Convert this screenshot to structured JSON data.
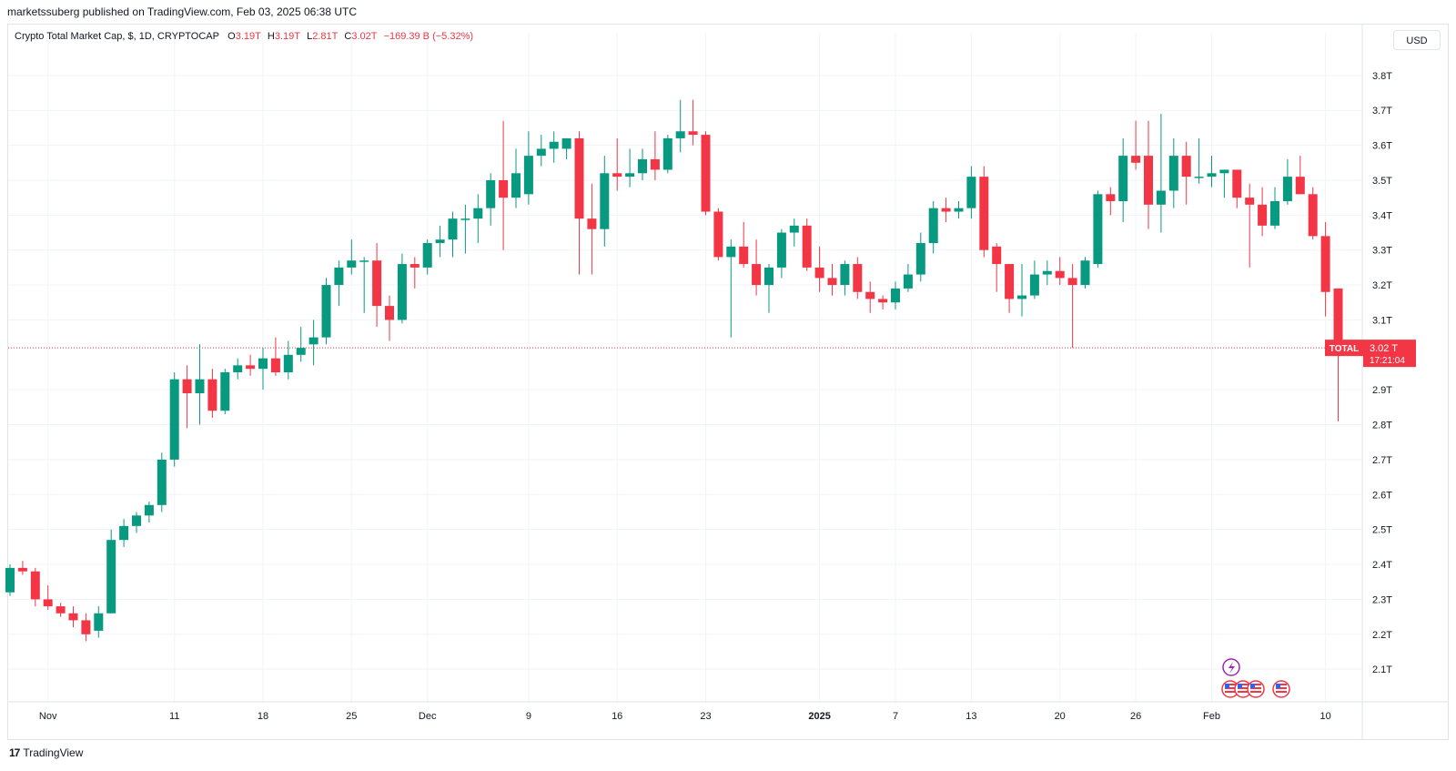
{
  "header": {
    "publisher_line": "marketssuberg published on TradingView.com, Feb 03, 2025 06:38 UTC"
  },
  "legend": {
    "title": "Crypto Total Market Cap, $, 1D, CRYPTOCAP",
    "o_label": "O",
    "o_value": "3.19T",
    "h_label": "H",
    "h_value": "3.19T",
    "l_label": "L",
    "l_value": "2.81T",
    "c_label": "C",
    "c_value": "3.02T",
    "change": "−169.39 B (−5.32%)"
  },
  "currency_button": "USD",
  "footer": {
    "brand": "TradingView",
    "logo_text": "17"
  },
  "price_tag": {
    "symbol": "TOTAL",
    "price": "3.02 T",
    "countdown": "17:21:04"
  },
  "colors": {
    "up": "#089981",
    "down": "#f23645",
    "grid": "#f0f3fa",
    "axis_text": "#131722"
  },
  "icons": [
    "lightning-event-icon",
    "us-flag-event-icon"
  ],
  "chart_data": {
    "type": "candlestick",
    "title": "Crypto Total Market Cap, $, 1D, CRYPTOCAP",
    "ylim": [
      2.03,
      3.87
    ],
    "y_ticks": [
      "2.1T",
      "2.2T",
      "2.3T",
      "2.4T",
      "2.5T",
      "2.6T",
      "2.7T",
      "2.8T",
      "2.9T",
      "3.1T",
      "3.2T",
      "3.3T",
      "3.4T",
      "3.5T",
      "3.6T",
      "3.7T",
      "3.8T"
    ],
    "y_tick_values": [
      2.1,
      2.2,
      2.3,
      2.4,
      2.5,
      2.6,
      2.7,
      2.8,
      2.9,
      3.1,
      3.2,
      3.3,
      3.4,
      3.5,
      3.6,
      3.7,
      3.8
    ],
    "x_labels": [
      {
        "label": "Nov",
        "date": "2024-11-01"
      },
      {
        "label": "11",
        "date": "2024-11-11"
      },
      {
        "label": "18",
        "date": "2024-11-18"
      },
      {
        "label": "25",
        "date": "2024-11-25"
      },
      {
        "label": "Dec",
        "date": "2024-12-01"
      },
      {
        "label": "9",
        "date": "2024-12-09"
      },
      {
        "label": "16",
        "date": "2024-12-16"
      },
      {
        "label": "23",
        "date": "2024-12-23"
      },
      {
        "label": "2025",
        "date": "2025-01-01"
      },
      {
        "label": "7",
        "date": "2025-01-07"
      },
      {
        "label": "13",
        "date": "2025-01-13"
      },
      {
        "label": "20",
        "date": "2025-01-20"
      },
      {
        "label": "26",
        "date": "2025-01-26"
      },
      {
        "label": "Feb",
        "date": "2025-02-01"
      },
      {
        "label": "10",
        "date": "2025-02-10"
      }
    ],
    "last_price": 3.02,
    "candles": [
      {
        "d": "2024-10-29",
        "o": 2.32,
        "h": 2.4,
        "l": 2.31,
        "c": 2.39
      },
      {
        "d": "2024-10-30",
        "o": 2.39,
        "h": 2.41,
        "l": 2.37,
        "c": 2.38
      },
      {
        "d": "2024-10-31",
        "o": 2.38,
        "h": 2.39,
        "l": 2.28,
        "c": 2.3
      },
      {
        "d": "2024-11-01",
        "o": 2.3,
        "h": 2.34,
        "l": 2.27,
        "c": 2.28
      },
      {
        "d": "2024-11-02",
        "o": 2.28,
        "h": 2.29,
        "l": 2.25,
        "c": 2.26
      },
      {
        "d": "2024-11-03",
        "o": 2.26,
        "h": 2.28,
        "l": 2.22,
        "c": 2.24
      },
      {
        "d": "2024-11-04",
        "o": 2.24,
        "h": 2.26,
        "l": 2.18,
        "c": 2.2
      },
      {
        "d": "2024-11-05",
        "o": 2.21,
        "h": 2.28,
        "l": 2.19,
        "c": 2.26
      },
      {
        "d": "2024-11-06",
        "o": 2.26,
        "h": 2.5,
        "l": 2.26,
        "c": 2.47
      },
      {
        "d": "2024-11-07",
        "o": 2.47,
        "h": 2.53,
        "l": 2.45,
        "c": 2.51
      },
      {
        "d": "2024-11-08",
        "o": 2.51,
        "h": 2.55,
        "l": 2.49,
        "c": 2.54
      },
      {
        "d": "2024-11-09",
        "o": 2.54,
        "h": 2.58,
        "l": 2.52,
        "c": 2.57
      },
      {
        "d": "2024-11-10",
        "o": 2.57,
        "h": 2.72,
        "l": 2.55,
        "c": 2.7
      },
      {
        "d": "2024-11-11",
        "o": 2.7,
        "h": 2.95,
        "l": 2.68,
        "c": 2.93
      },
      {
        "d": "2024-11-12",
        "o": 2.93,
        "h": 2.97,
        "l": 2.79,
        "c": 2.89
      },
      {
        "d": "2024-11-13",
        "o": 2.89,
        "h": 3.03,
        "l": 2.8,
        "c": 2.93
      },
      {
        "d": "2024-11-14",
        "o": 2.93,
        "h": 2.96,
        "l": 2.82,
        "c": 2.84
      },
      {
        "d": "2024-11-15",
        "o": 2.84,
        "h": 2.96,
        "l": 2.83,
        "c": 2.95
      },
      {
        "d": "2024-11-16",
        "o": 2.95,
        "h": 2.99,
        "l": 2.93,
        "c": 2.97
      },
      {
        "d": "2024-11-17",
        "o": 2.97,
        "h": 3.0,
        "l": 2.94,
        "c": 2.96
      },
      {
        "d": "2024-11-18",
        "o": 2.96,
        "h": 3.02,
        "l": 2.9,
        "c": 2.99
      },
      {
        "d": "2024-11-19",
        "o": 2.99,
        "h": 3.05,
        "l": 2.94,
        "c": 2.95
      },
      {
        "d": "2024-11-20",
        "o": 2.95,
        "h": 3.04,
        "l": 2.93,
        "c": 3.0
      },
      {
        "d": "2024-11-21",
        "o": 3.0,
        "h": 3.08,
        "l": 2.98,
        "c": 3.02
      },
      {
        "d": "2024-11-22",
        "o": 3.03,
        "h": 3.1,
        "l": 2.97,
        "c": 3.05
      },
      {
        "d": "2024-11-23",
        "o": 3.05,
        "h": 3.22,
        "l": 3.03,
        "c": 3.2
      },
      {
        "d": "2024-11-24",
        "o": 3.2,
        "h": 3.27,
        "l": 3.14,
        "c": 3.25
      },
      {
        "d": "2024-11-25",
        "o": 3.25,
        "h": 3.33,
        "l": 3.23,
        "c": 3.27
      },
      {
        "d": "2024-11-26",
        "o": 3.27,
        "h": 3.28,
        "l": 3.12,
        "c": 3.27
      },
      {
        "d": "2024-11-27",
        "o": 3.27,
        "h": 3.32,
        "l": 3.08,
        "c": 3.14
      },
      {
        "d": "2024-11-28",
        "o": 3.14,
        "h": 3.17,
        "l": 3.04,
        "c": 3.1
      },
      {
        "d": "2024-11-29",
        "o": 3.1,
        "h": 3.29,
        "l": 3.09,
        "c": 3.26
      },
      {
        "d": "2024-11-30",
        "o": 3.26,
        "h": 3.28,
        "l": 3.19,
        "c": 3.25
      },
      {
        "d": "2024-12-01",
        "o": 3.25,
        "h": 3.33,
        "l": 3.23,
        "c": 3.32
      },
      {
        "d": "2024-12-02",
        "o": 3.32,
        "h": 3.37,
        "l": 3.28,
        "c": 3.33
      },
      {
        "d": "2024-12-03",
        "o": 3.33,
        "h": 3.41,
        "l": 3.28,
        "c": 3.39
      },
      {
        "d": "2024-12-04",
        "o": 3.39,
        "h": 3.43,
        "l": 3.29,
        "c": 3.39
      },
      {
        "d": "2024-12-05",
        "o": 3.39,
        "h": 3.46,
        "l": 3.32,
        "c": 3.42
      },
      {
        "d": "2024-12-06",
        "o": 3.42,
        "h": 3.52,
        "l": 3.37,
        "c": 3.5
      },
      {
        "d": "2024-12-07",
        "o": 3.5,
        "h": 3.67,
        "l": 3.3,
        "c": 3.45
      },
      {
        "d": "2024-12-08",
        "o": 3.45,
        "h": 3.59,
        "l": 3.42,
        "c": 3.52
      },
      {
        "d": "2024-12-09",
        "o": 3.46,
        "h": 3.64,
        "l": 3.43,
        "c": 3.57
      },
      {
        "d": "2024-12-10",
        "o": 3.57,
        "h": 3.63,
        "l": 3.54,
        "c": 3.59
      },
      {
        "d": "2024-12-11",
        "o": 3.59,
        "h": 3.64,
        "l": 3.55,
        "c": 3.61
      },
      {
        "d": "2024-12-12",
        "o": 3.59,
        "h": 3.62,
        "l": 3.56,
        "c": 3.62
      },
      {
        "d": "2024-12-13",
        "o": 3.62,
        "h": 3.64,
        "l": 3.23,
        "c": 3.39
      },
      {
        "d": "2024-12-14",
        "o": 3.39,
        "h": 3.49,
        "l": 3.23,
        "c": 3.36
      },
      {
        "d": "2024-12-15",
        "o": 3.36,
        "h": 3.57,
        "l": 3.31,
        "c": 3.52
      },
      {
        "d": "2024-12-16",
        "o": 3.52,
        "h": 3.62,
        "l": 3.47,
        "c": 3.51
      },
      {
        "d": "2024-12-17",
        "o": 3.51,
        "h": 3.59,
        "l": 3.48,
        "c": 3.52
      },
      {
        "d": "2024-12-18",
        "o": 3.52,
        "h": 3.59,
        "l": 3.5,
        "c": 3.56
      },
      {
        "d": "2024-12-19",
        "o": 3.56,
        "h": 3.64,
        "l": 3.5,
        "c": 3.53
      },
      {
        "d": "2024-12-20",
        "o": 3.53,
        "h": 3.63,
        "l": 3.52,
        "c": 3.62
      },
      {
        "d": "2024-12-21",
        "o": 3.62,
        "h": 3.73,
        "l": 3.58,
        "c": 3.64
      },
      {
        "d": "2024-12-22",
        "o": 3.64,
        "h": 3.73,
        "l": 3.6,
        "c": 3.63
      },
      {
        "d": "2024-12-23",
        "o": 3.63,
        "h": 3.64,
        "l": 3.4,
        "c": 3.41
      },
      {
        "d": "2024-12-24",
        "o": 3.41,
        "h": 3.42,
        "l": 3.27,
        "c": 3.28
      },
      {
        "d": "2024-12-25",
        "o": 3.28,
        "h": 3.33,
        "l": 3.05,
        "c": 3.31
      },
      {
        "d": "2024-12-26",
        "o": 3.31,
        "h": 3.38,
        "l": 3.25,
        "c": 3.26
      },
      {
        "d": "2024-12-27",
        "o": 3.26,
        "h": 3.33,
        "l": 3.17,
        "c": 3.2
      },
      {
        "d": "2024-12-28",
        "o": 3.2,
        "h": 3.26,
        "l": 3.12,
        "c": 3.25
      },
      {
        "d": "2024-12-29",
        "o": 3.25,
        "h": 3.36,
        "l": 3.22,
        "c": 3.35
      },
      {
        "d": "2024-12-30",
        "o": 3.35,
        "h": 3.39,
        "l": 3.31,
        "c": 3.37
      },
      {
        "d": "2024-12-31",
        "o": 3.37,
        "h": 3.39,
        "l": 3.24,
        "c": 3.25
      },
      {
        "d": "2025-01-01",
        "o": 3.25,
        "h": 3.31,
        "l": 3.18,
        "c": 3.22
      },
      {
        "d": "2025-01-02",
        "o": 3.22,
        "h": 3.26,
        "l": 3.17,
        "c": 3.2
      },
      {
        "d": "2025-01-03",
        "o": 3.2,
        "h": 3.27,
        "l": 3.17,
        "c": 3.26
      },
      {
        "d": "2025-01-04",
        "o": 3.26,
        "h": 3.28,
        "l": 3.16,
        "c": 3.18
      },
      {
        "d": "2025-01-05",
        "o": 3.18,
        "h": 3.21,
        "l": 3.12,
        "c": 3.16
      },
      {
        "d": "2025-01-06",
        "o": 3.16,
        "h": 3.17,
        "l": 3.13,
        "c": 3.15
      },
      {
        "d": "2025-01-07",
        "o": 3.15,
        "h": 3.21,
        "l": 3.13,
        "c": 3.19
      },
      {
        "d": "2025-01-08",
        "o": 3.19,
        "h": 3.26,
        "l": 3.18,
        "c": 3.23
      },
      {
        "d": "2025-01-09",
        "o": 3.23,
        "h": 3.35,
        "l": 3.21,
        "c": 3.32
      },
      {
        "d": "2025-01-10",
        "o": 3.32,
        "h": 3.44,
        "l": 3.29,
        "c": 3.42
      },
      {
        "d": "2025-01-11",
        "o": 3.42,
        "h": 3.45,
        "l": 3.38,
        "c": 3.41
      },
      {
        "d": "2025-01-12",
        "o": 3.41,
        "h": 3.44,
        "l": 3.39,
        "c": 3.42
      },
      {
        "d": "2025-01-13",
        "o": 3.42,
        "h": 3.54,
        "l": 3.39,
        "c": 3.51
      },
      {
        "d": "2025-01-14",
        "o": 3.51,
        "h": 3.54,
        "l": 3.28,
        "c": 3.3
      },
      {
        "d": "2025-01-15",
        "o": 3.31,
        "h": 3.32,
        "l": 3.18,
        "c": 3.26
      },
      {
        "d": "2025-01-16",
        "o": 3.26,
        "h": 3.26,
        "l": 3.12,
        "c": 3.16
      },
      {
        "d": "2025-01-17",
        "o": 3.16,
        "h": 3.26,
        "l": 3.11,
        "c": 3.17
      },
      {
        "d": "2025-01-18",
        "o": 3.17,
        "h": 3.27,
        "l": 3.16,
        "c": 3.23
      },
      {
        "d": "2025-01-19",
        "o": 3.23,
        "h": 3.27,
        "l": 3.2,
        "c": 3.24
      },
      {
        "d": "2025-01-20",
        "o": 3.24,
        "h": 3.28,
        "l": 3.2,
        "c": 3.22
      },
      {
        "d": "2025-01-21",
        "o": 3.22,
        "h": 3.26,
        "l": 3.02,
        "c": 3.2
      },
      {
        "d": "2025-01-22",
        "o": 3.2,
        "h": 3.28,
        "l": 3.19,
        "c": 3.27
      },
      {
        "d": "2025-01-23",
        "o": 3.26,
        "h": 3.47,
        "l": 3.25,
        "c": 3.46
      },
      {
        "d": "2025-01-24",
        "o": 3.46,
        "h": 3.48,
        "l": 3.4,
        "c": 3.44
      },
      {
        "d": "2025-01-25",
        "o": 3.44,
        "h": 3.62,
        "l": 3.38,
        "c": 3.57
      },
      {
        "d": "2025-01-26",
        "o": 3.57,
        "h": 3.67,
        "l": 3.53,
        "c": 3.55
      },
      {
        "d": "2025-01-27",
        "o": 3.57,
        "h": 3.67,
        "l": 3.36,
        "c": 3.43
      },
      {
        "d": "2025-01-28",
        "o": 3.43,
        "h": 3.69,
        "l": 3.35,
        "c": 3.47
      },
      {
        "d": "2025-01-29",
        "o": 3.47,
        "h": 3.62,
        "l": 3.42,
        "c": 3.57
      },
      {
        "d": "2025-01-30",
        "o": 3.57,
        "h": 3.61,
        "l": 3.43,
        "c": 3.51
      },
      {
        "d": "2025-01-31",
        "o": 3.51,
        "h": 3.62,
        "l": 3.49,
        "c": 3.51
      },
      {
        "d": "2025-02-01",
        "o": 3.51,
        "h": 3.57,
        "l": 3.48,
        "c": 3.52
      },
      {
        "d": "2025-02-02",
        "o": 3.52,
        "h": 3.53,
        "l": 3.45,
        "c": 3.53
      },
      {
        "d": "2025-02-03a",
        "o": 3.53,
        "h": 3.53,
        "l": 3.42,
        "c": 3.45
      },
      {
        "d": "2025-02-04a",
        "o": 3.45,
        "h": 3.49,
        "l": 3.25,
        "c": 3.43
      },
      {
        "d": "2025-02-05a",
        "o": 3.43,
        "h": 3.48,
        "l": 3.34,
        "c": 3.37
      },
      {
        "d": "2025-02-06a",
        "o": 3.37,
        "h": 3.48,
        "l": 3.36,
        "c": 3.44
      },
      {
        "d": "2025-02-07a",
        "o": 3.44,
        "h": 3.56,
        "l": 3.43,
        "c": 3.51
      },
      {
        "d": "2025-02-08a",
        "o": 3.51,
        "h": 3.57,
        "l": 3.46,
        "c": 3.46
      },
      {
        "d": "2025-02-09a",
        "o": 3.46,
        "h": 3.48,
        "l": 3.33,
        "c": 3.34
      },
      {
        "d": "2025-02-10a",
        "o": 3.34,
        "h": 3.38,
        "l": 3.11,
        "c": 3.18
      },
      {
        "d": "2025-02-11a",
        "o": 3.19,
        "h": 3.19,
        "l": 2.81,
        "c": 3.02
      }
    ]
  }
}
